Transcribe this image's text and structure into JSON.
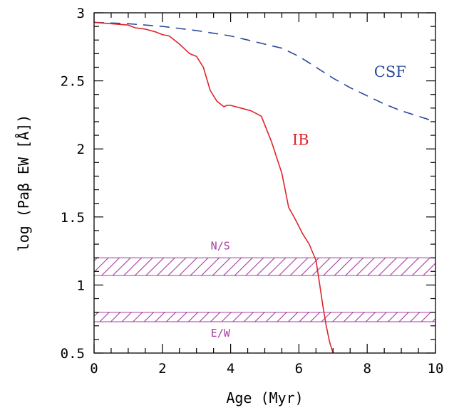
{
  "chart_data": {
    "type": "line",
    "xlabel": "Age (Myr)",
    "ylabel": "log (Paβ EW [Å])",
    "xlim": [
      0,
      10
    ],
    "ylim": [
      0.5,
      3
    ],
    "x_ticks": [
      0,
      2,
      4,
      6,
      8,
      10
    ],
    "y_ticks": [
      0.5,
      1,
      1.5,
      2,
      2.5,
      3
    ],
    "x_tick_labels": [
      "0",
      "2",
      "4",
      "6",
      "8",
      "10"
    ],
    "y_tick_labels": [
      "0.5",
      "1",
      "1.5",
      "2",
      "2.5",
      "3"
    ],
    "grid": false,
    "series": [
      {
        "name": "CSF",
        "color": "#2a4a9a",
        "style": "dashed",
        "label_at": [
          8.2,
          2.53
        ],
        "x": [
          0,
          0.5,
          1,
          1.5,
          2,
          2.5,
          3,
          3.5,
          4,
          4.5,
          5,
          5.5,
          6,
          6.5,
          7,
          7.5,
          8,
          8.5,
          9,
          9.5,
          10
        ],
        "y": [
          2.93,
          2.925,
          2.92,
          2.91,
          2.9,
          2.885,
          2.87,
          2.85,
          2.83,
          2.8,
          2.77,
          2.74,
          2.68,
          2.6,
          2.52,
          2.45,
          2.39,
          2.33,
          2.28,
          2.24,
          2.2
        ]
      },
      {
        "name": "IB",
        "color": "#e0242a",
        "style": "solid",
        "label_at": [
          5.8,
          2.03
        ],
        "x": [
          0,
          0.5,
          1,
          1.2,
          1.5,
          1.8,
          2.0,
          2.2,
          2.5,
          2.8,
          3.0,
          3.2,
          3.4,
          3.6,
          3.8,
          3.9,
          4.0,
          4.3,
          4.6,
          4.9,
          5.2,
          5.5,
          5.7,
          5.9,
          6.1,
          6.3,
          6.5,
          6.6,
          6.7,
          6.8,
          6.9,
          7.0
        ],
        "y": [
          2.93,
          2.92,
          2.91,
          2.89,
          2.88,
          2.86,
          2.84,
          2.83,
          2.77,
          2.7,
          2.68,
          2.6,
          2.43,
          2.35,
          2.31,
          2.32,
          2.32,
          2.3,
          2.28,
          2.24,
          2.05,
          1.82,
          1.57,
          1.48,
          1.38,
          1.3,
          1.18,
          1.02,
          0.85,
          0.7,
          0.58,
          0.5
        ]
      }
    ],
    "bands": [
      {
        "label": "N/S",
        "ymin": 1.07,
        "ymax": 1.2,
        "color": "#a63ca0",
        "label_at": [
          3.7,
          1.26
        ]
      },
      {
        "label": "E/W",
        "ymin": 0.73,
        "ymax": 0.8,
        "color": "#a63ca0",
        "label_at": [
          3.7,
          0.62
        ]
      }
    ]
  }
}
